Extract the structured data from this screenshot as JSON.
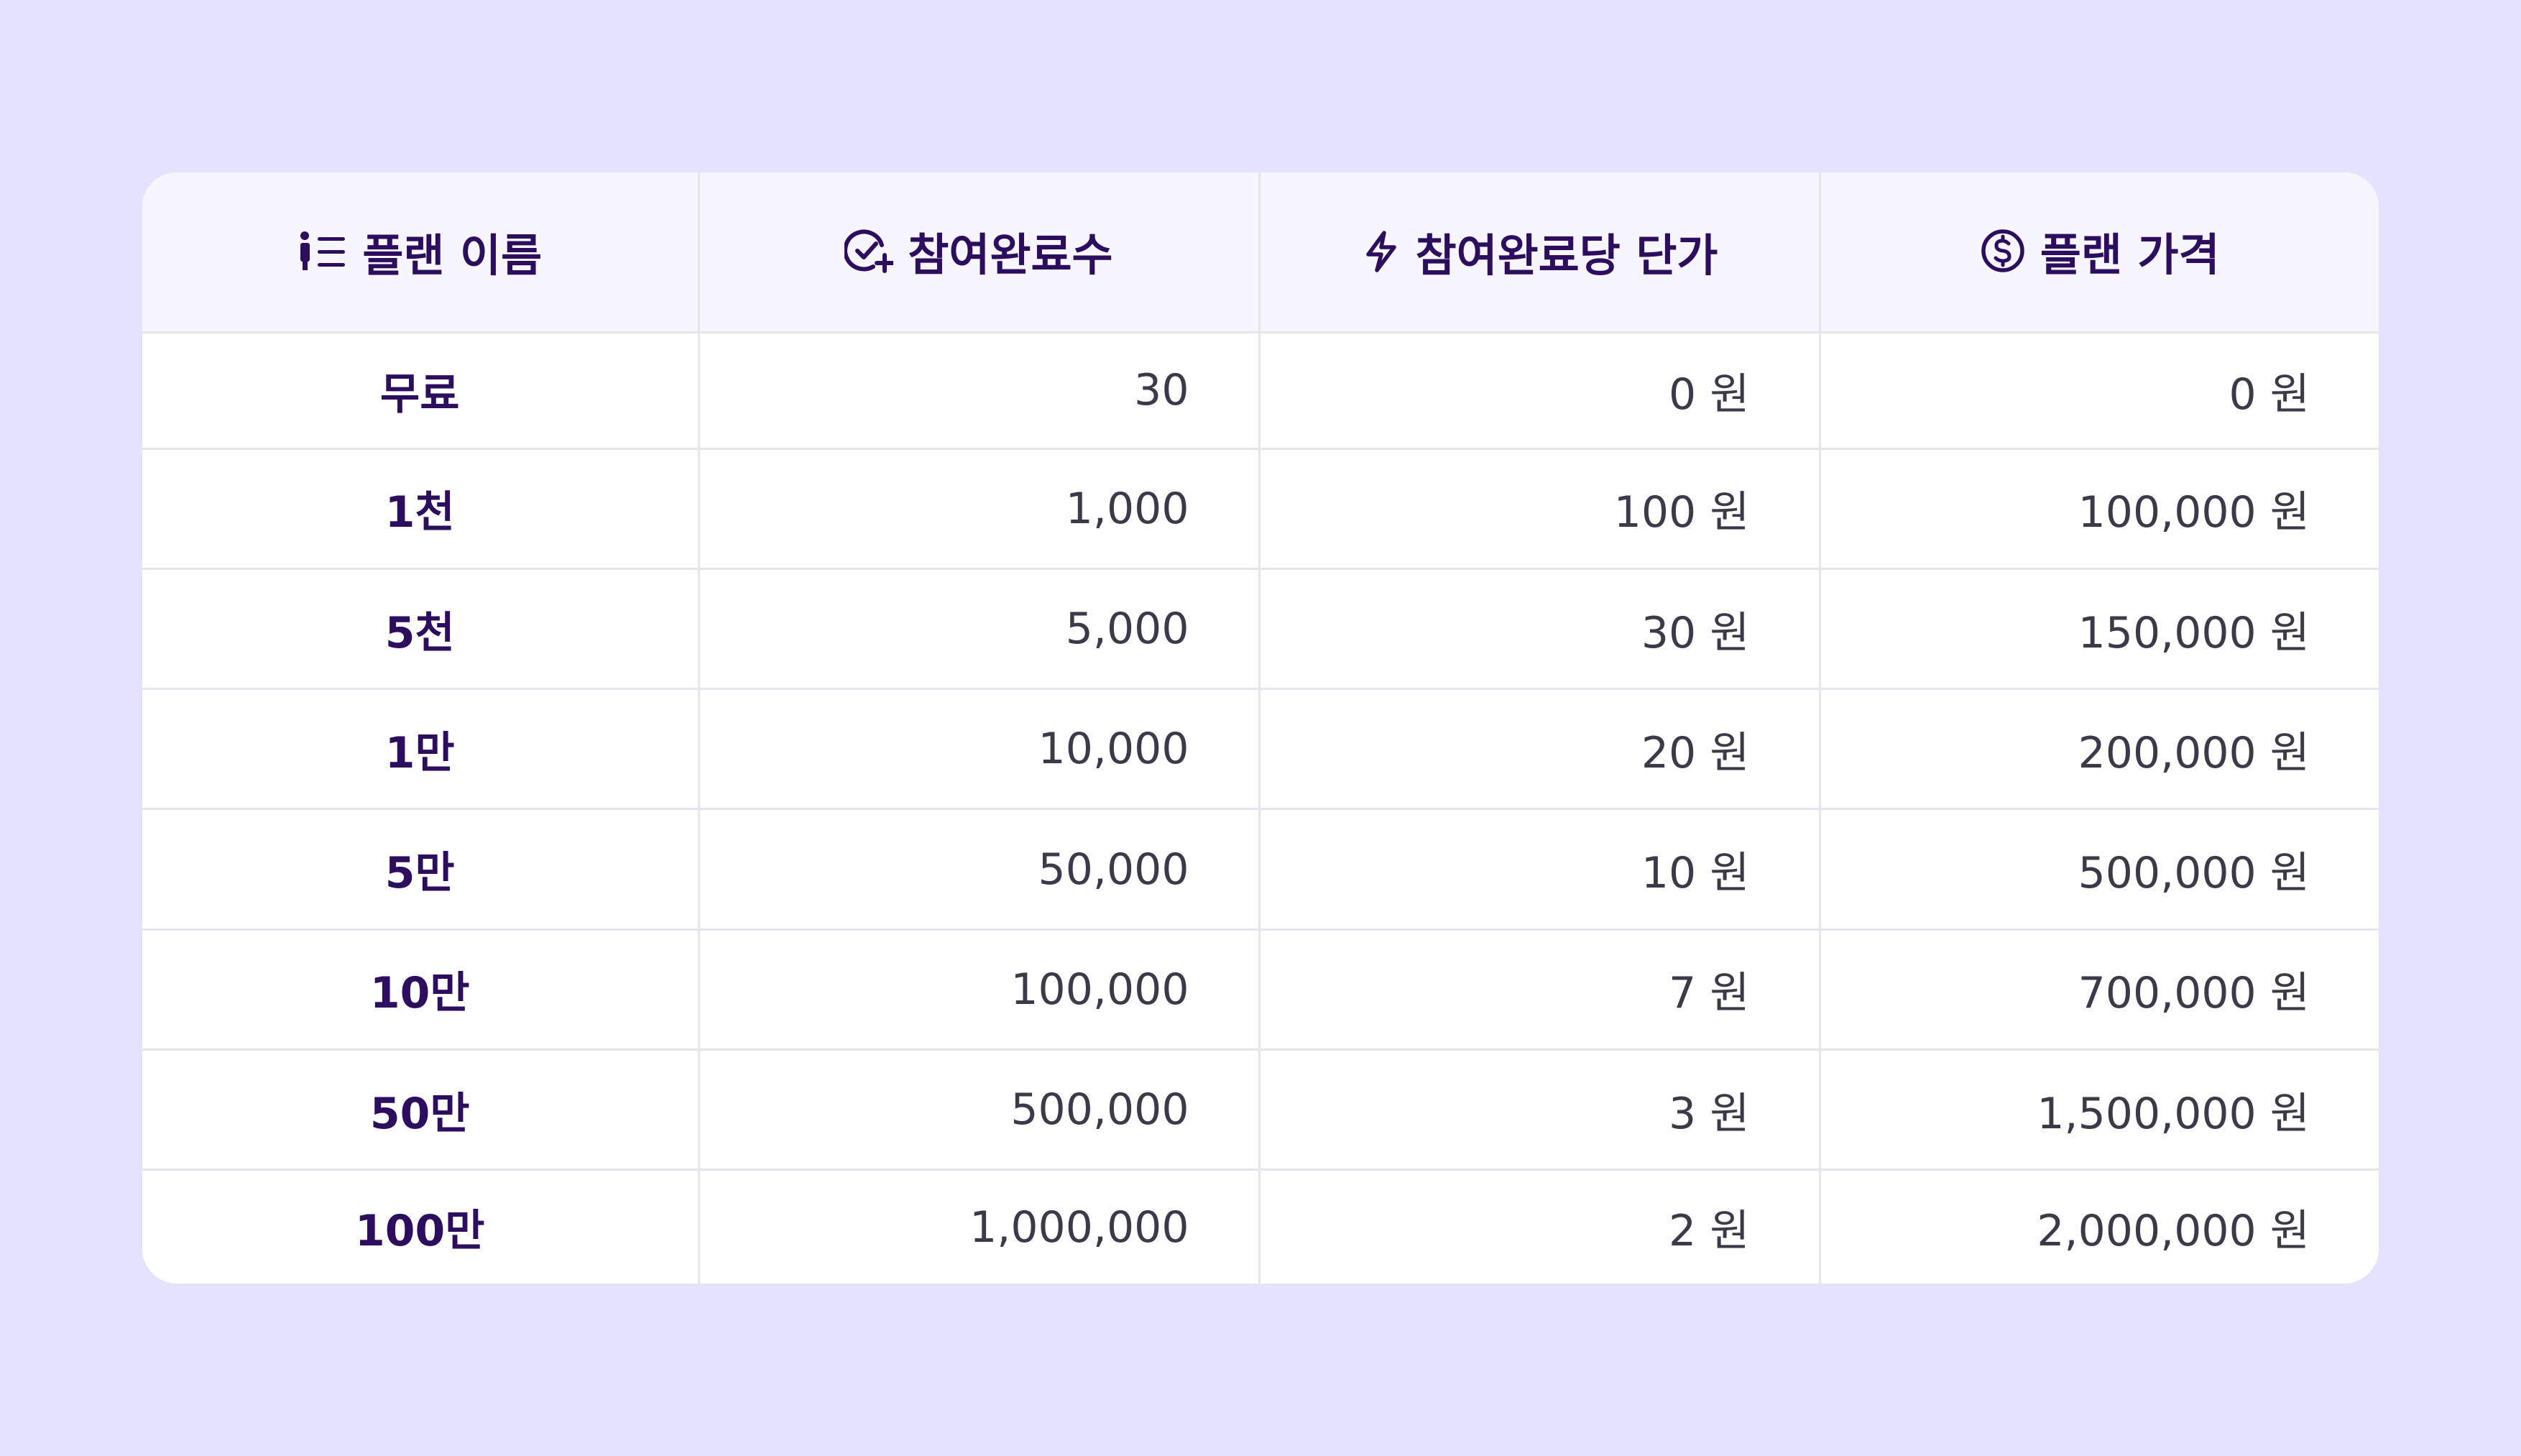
{
  "table": {
    "headers": [
      {
        "label": "플랜 이름",
        "icon": "person-list-icon"
      },
      {
        "label": "참여완료수",
        "icon": "check-circle-plus-icon"
      },
      {
        "label": "참여완료당 단가",
        "icon": "lightning-icon"
      },
      {
        "label": "플랜 가격",
        "icon": "dollar-circle-icon"
      }
    ],
    "rows": [
      {
        "plan": "무료",
        "completions": "30",
        "unit_price": "0 원",
        "plan_price": "0 원"
      },
      {
        "plan": "1천",
        "completions": "1,000",
        "unit_price": "100 원",
        "plan_price": "100,000 원"
      },
      {
        "plan": "5천",
        "completions": "5,000",
        "unit_price": "30 원",
        "plan_price": "150,000 원"
      },
      {
        "plan": "1만",
        "completions": "10,000",
        "unit_price": "20 원",
        "plan_price": "200,000 원"
      },
      {
        "plan": "5만",
        "completions": "50,000",
        "unit_price": "10 원",
        "plan_price": "500,000 원"
      },
      {
        "plan": "10만",
        "completions": "100,000",
        "unit_price": "7 원",
        "plan_price": "700,000 원"
      },
      {
        "plan": "50만",
        "completions": "500,000",
        "unit_price": "3 원",
        "plan_price": "1,500,000 원"
      },
      {
        "plan": "100만",
        "completions": "1,000,000",
        "unit_price": "2 원",
        "plan_price": "2,000,000 원"
      }
    ]
  },
  "colors": {
    "background": "#e4e3ff",
    "header_background": "#f7f6fe",
    "accent_text": "#2c0d5e",
    "body_text": "#3a3a48",
    "grid_line": "#e6e6ea"
  }
}
